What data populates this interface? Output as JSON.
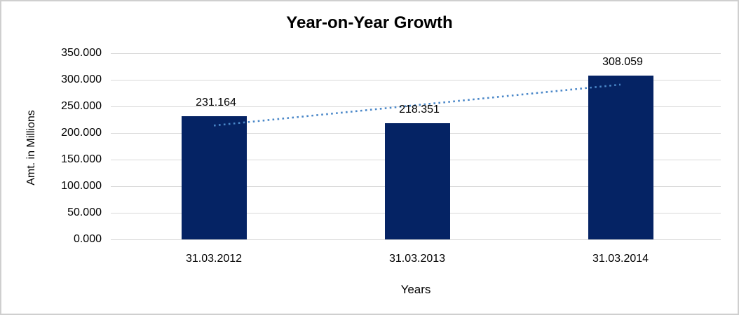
{
  "chart_data": {
    "type": "bar",
    "title": "Year-on-Year Growth",
    "xlabel": "Years",
    "ylabel": "Amt. in Millions",
    "categories": [
      "31.03.2012",
      "31.03.2013",
      "31.03.2014"
    ],
    "values": [
      231.164,
      218.351,
      308.059
    ],
    "value_labels": [
      "231.164",
      "218.351",
      "308.059"
    ],
    "ylim": [
      0,
      350
    ],
    "ytick_step": 50,
    "ytick_labels": [
      "0.000",
      "50.000",
      "100.000",
      "150.000",
      "200.000",
      "250.000",
      "300.000",
      "350.000"
    ],
    "grid": true,
    "legend": false,
    "trendline": {
      "type": "linear",
      "style": "dotted"
    },
    "colors": {
      "bar": "#052364",
      "trendline": "#4a87c8",
      "gridline": "#d9d9d9",
      "axis_line": "#d6d6d6",
      "text": "#000000",
      "background": "#ffffff",
      "frame_border": "#cfcfcf"
    }
  }
}
